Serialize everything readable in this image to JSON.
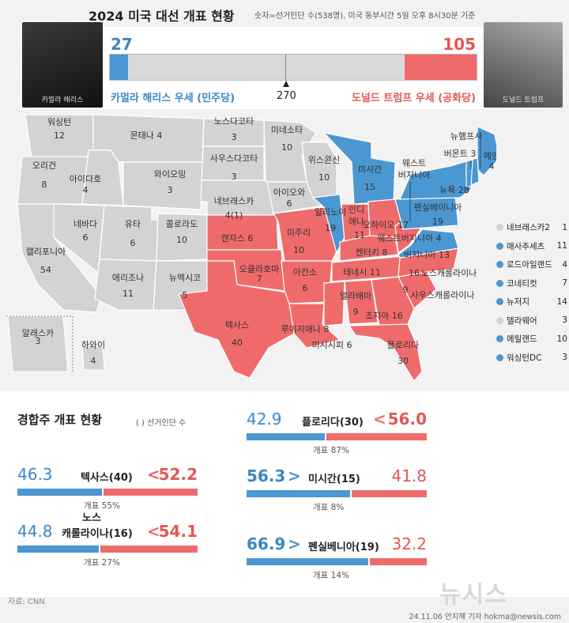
{
  "header": {
    "title": "2024 미국 대선 개표 현황",
    "subtitle": "숫자=선거인단 수(538명), 미국 동부시간 5일 오후 8시30분 기준"
  },
  "tally": {
    "dem_ev": 27,
    "rep_ev": 105,
    "threshold": 270,
    "total": 538,
    "dem_label": "카멀라 해리스 우세 (민주당)",
    "rep_label": "도널드 트럼프 우세 (공화당)",
    "dem_photo_label": "카멀라 해리스",
    "rep_photo_label": "도널드 트럼프"
  },
  "colors": {
    "dem": "#4b97d2",
    "rep": "#ef6b6b",
    "undecided": "#d3d3d3"
  },
  "map_states": [
    {
      "name": "워싱턴",
      "ev": "12",
      "status": "none"
    },
    {
      "name": "오리건",
      "ev": "8",
      "status": "none"
    },
    {
      "name": "캘리포니아",
      "ev": "54",
      "status": "none"
    },
    {
      "name": "몬태나",
      "ev": "4",
      "status": "none"
    },
    {
      "name": "아이다호",
      "ev": "4",
      "status": "none"
    },
    {
      "name": "네바다",
      "ev": "6",
      "status": "none"
    },
    {
      "name": "와이오밍",
      "ev": "3",
      "status": "none"
    },
    {
      "name": "유타",
      "ev": "6",
      "status": "none"
    },
    {
      "name": "애리조나",
      "ev": "11",
      "status": "none"
    },
    {
      "name": "콜로라도",
      "ev": "10",
      "status": "none"
    },
    {
      "name": "뉴멕시코",
      "ev": "5",
      "status": "none"
    },
    {
      "name": "노스다코타",
      "ev": "3",
      "status": "none"
    },
    {
      "name": "사우스다코타",
      "ev": "3",
      "status": "none"
    },
    {
      "name": "네브래스카",
      "ev": "4(1)",
      "status": "none"
    },
    {
      "name": "캔자스",
      "ev": "6",
      "status": "rep"
    },
    {
      "name": "오클라호마",
      "ev": "7",
      "status": "rep"
    },
    {
      "name": "텍사스",
      "ev": "40",
      "status": "rep"
    },
    {
      "name": "미네소타",
      "ev": "10",
      "status": "none"
    },
    {
      "name": "아이오와",
      "ev": "6",
      "status": "none"
    },
    {
      "name": "미주리",
      "ev": "10",
      "status": "rep"
    },
    {
      "name": "아칸소",
      "ev": "6",
      "status": "rep"
    },
    {
      "name": "루이지애나",
      "ev": "8",
      "status": "rep"
    },
    {
      "name": "위스콘신",
      "ev": "10",
      "status": "none"
    },
    {
      "name": "일리노이",
      "ev": "19",
      "status": "dem"
    },
    {
      "name": "미시간",
      "ev": "15",
      "status": "dem"
    },
    {
      "name": "인디애나",
      "ev": "11",
      "status": "rep"
    },
    {
      "name": "오하이오",
      "ev": "17",
      "status": "rep"
    },
    {
      "name": "켄터키",
      "ev": "8",
      "status": "rep"
    },
    {
      "name": "테네시",
      "ev": "11",
      "status": "rep"
    },
    {
      "name": "미시시피",
      "ev": "6",
      "status": "rep"
    },
    {
      "name": "앨라배마",
      "ev": "9",
      "status": "rep"
    },
    {
      "name": "조지아",
      "ev": "16",
      "status": "rep"
    },
    {
      "name": "플로리다",
      "ev": "30",
      "status": "rep"
    },
    {
      "name": "사우스캐롤라이나",
      "ev": "9",
      "status": "rep"
    },
    {
      "name": "노스캐롤라이나",
      "ev": "16",
      "status": "rep"
    },
    {
      "name": "웨스트버지니아",
      "ev": "4",
      "status": "rep"
    },
    {
      "name": "버지니아",
      "ev": "13",
      "status": "dem"
    },
    {
      "name": "펜실베이니아",
      "ev": "19",
      "status": "dem"
    },
    {
      "name": "뉴욕",
      "ev": "28",
      "status": "dem"
    },
    {
      "name": "메인",
      "ev": "4",
      "status": "dem"
    },
    {
      "name": "뉴햄프셔",
      "ev": "",
      "status": "dem"
    },
    {
      "name": "버몬트",
      "ev": "3",
      "status": "dem"
    },
    {
      "name": "알래스카",
      "ev": "3",
      "status": "none"
    },
    {
      "name": "하와이",
      "ev": "4",
      "status": "none"
    }
  ],
  "map_text": {
    "wv_line1": "웨스트",
    "wv_line2": "버지니아",
    "sc": "사우스캐롤라이나",
    "nc": "노스캐롤라이나",
    "nh": "뉴햄프셔",
    "ne_label1": "네브래스카",
    "ne_ev": "4(1)",
    "in_1": "인디",
    "in_2": "애나"
  },
  "legend": [
    {
      "name": "네브래스카2",
      "ev": "1",
      "status": "none"
    },
    {
      "name": "매사추세츠",
      "ev": "11",
      "status": "dem"
    },
    {
      "name": "로드아일랜드",
      "ev": "4",
      "status": "dem"
    },
    {
      "name": "코네티컷",
      "ev": "7",
      "status": "dem"
    },
    {
      "name": "뉴저지",
      "ev": "14",
      "status": "dem"
    },
    {
      "name": "델라웨어",
      "ev": "3",
      "status": "none"
    },
    {
      "name": "메릴랜드",
      "ev": "10",
      "status": "dem"
    },
    {
      "name": "워싱턴DC",
      "ev": "3",
      "status": "dem"
    }
  ],
  "swing": {
    "title": "경합주 개표 현황",
    "note": "( ) 선거인단 수",
    "races": [
      {
        "state": "텍사스(40)",
        "dem": "46.3",
        "rep": "52.2",
        "cmp": "<",
        "count": "개표 55%"
      },
      {
        "state_line1": "노스",
        "state_line2": "캐롤라이나(16)",
        "dem": "44.8",
        "rep": "54.1",
        "cmp": "<",
        "count": "개표 27%"
      },
      {
        "state": "플로리다(30)",
        "dem": "42.9",
        "rep": "56.0",
        "cmp": "<",
        "count": "개표 87%"
      },
      {
        "state": "미시간(15)",
        "dem": "56.3",
        "rep": "41.8",
        "cmp": ">",
        "count": "개표 8%"
      },
      {
        "state": "펜실베니아(19)",
        "dem": "66.9",
        "rep": "32.2",
        "cmp": ">",
        "count": "개표 14%"
      }
    ]
  },
  "footer": {
    "source": "자료: CNN",
    "credit": "24.11.06 안지혜 기자 hokma@newsis.com",
    "watermark": "뉴시스"
  }
}
